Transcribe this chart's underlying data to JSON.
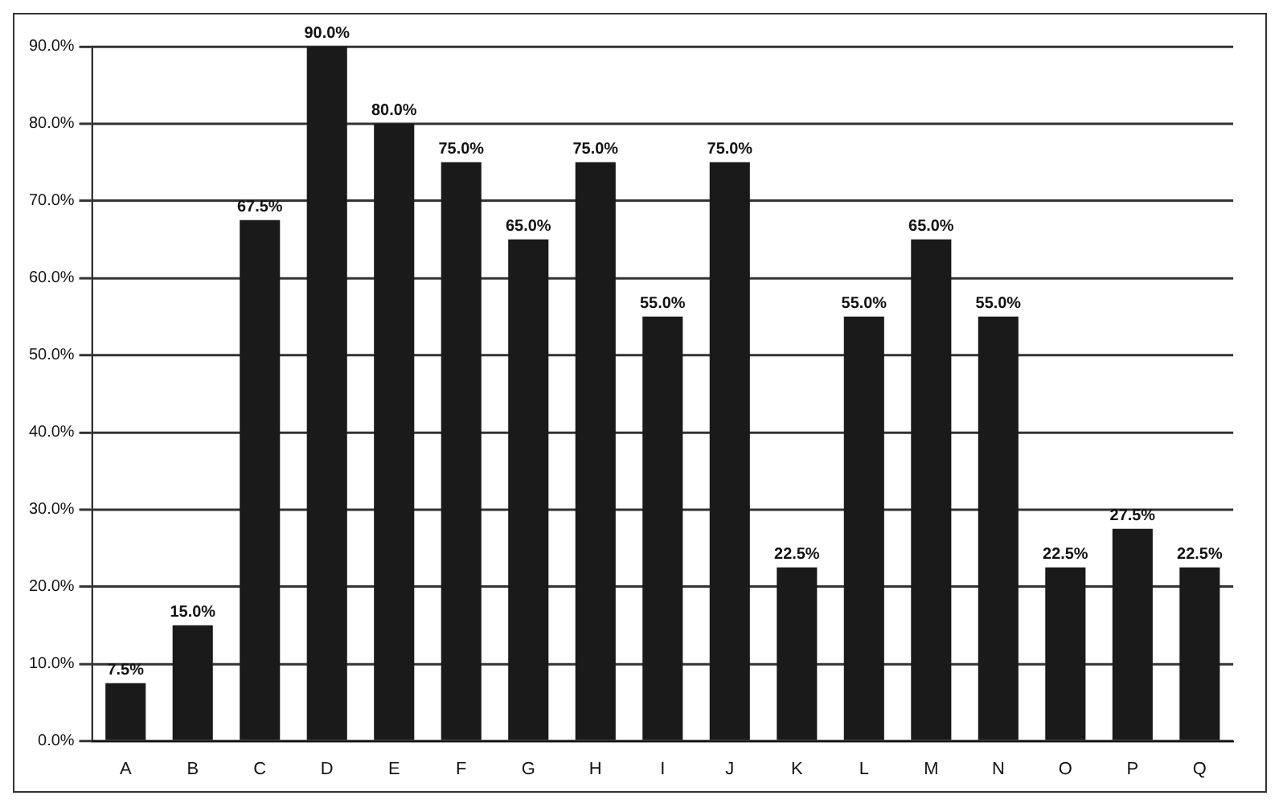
{
  "chart_data": {
    "type": "bar",
    "categories": [
      "A",
      "B",
      "C",
      "D",
      "E",
      "F",
      "G",
      "H",
      "I",
      "J",
      "K",
      "L",
      "M",
      "N",
      "O",
      "P",
      "Q"
    ],
    "values": [
      7.5,
      15,
      67.5,
      90,
      80,
      75,
      65,
      75,
      55,
      75,
      22.5,
      55,
      65,
      55,
      22.5,
      27.5,
      22.5
    ],
    "value_labels": [
      "7.5%",
      "15.0%",
      "67.5%",
      "90.0%",
      "80.0%",
      "75.0%",
      "65.0%",
      "75.0%",
      "55.0%",
      "75.0%",
      "22.5%",
      "55.0%",
      "65.0%",
      "55.0%",
      "22.5%",
      "27.5%",
      "22.5%"
    ],
    "color": "#1a1a1a",
    "ylim": [
      0,
      90
    ],
    "yticks": [
      {
        "value": 0,
        "label": "0.0%"
      },
      {
        "value": 10,
        "label": "10.0%"
      },
      {
        "value": 20,
        "label": "20.0%"
      },
      {
        "value": 30,
        "label": "30.0%"
      },
      {
        "value": 40,
        "label": "40.0%"
      },
      {
        "value": 50,
        "label": "50.0%"
      },
      {
        "value": 60,
        "label": "60.0%"
      },
      {
        "value": 70,
        "label": "70.0%"
      },
      {
        "value": 80,
        "label": "80.0%"
      },
      {
        "value": 90,
        "label": "90.0%"
      }
    ],
    "grid": "y",
    "legend": false
  }
}
